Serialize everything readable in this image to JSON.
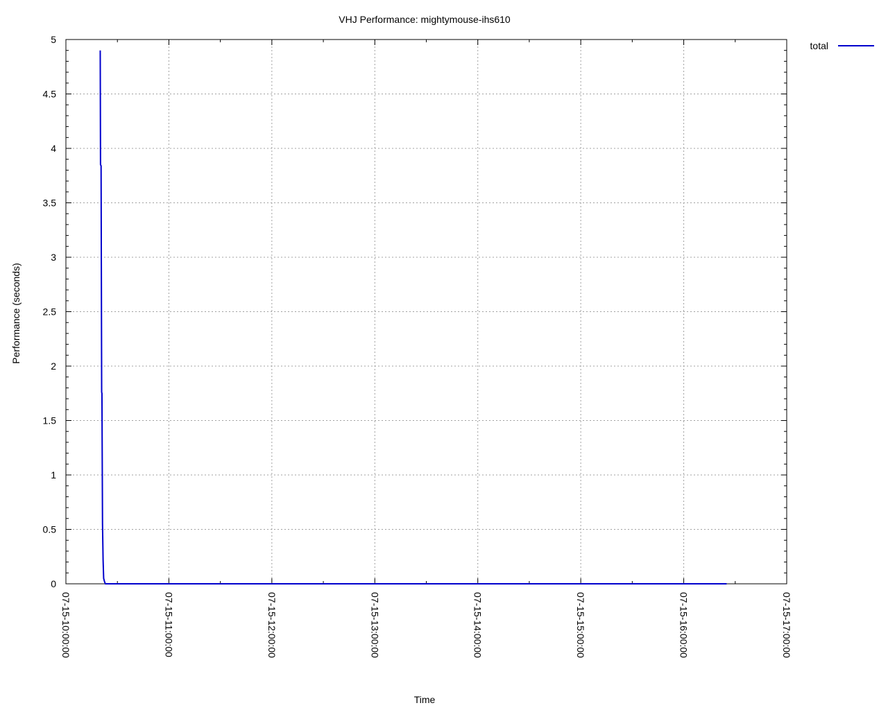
{
  "chart_data": {
    "type": "line",
    "title": "VHJ Performance: mightymouse-ihs610",
    "xlabel": "Time",
    "ylabel": "Performance (seconds)",
    "xlim": [
      "07-15-10:00:00",
      "07-15-17:00:00"
    ],
    "ylim": [
      0,
      5
    ],
    "x_tick_labels": [
      "07-15-10:00:00",
      "07-15-11:00:00",
      "07-15-12:00:00",
      "07-15-13:00:00",
      "07-15-14:00:00",
      "07-15-15:00:00",
      "07-15-16:00:00",
      "07-15-17:00:00"
    ],
    "y_tick_labels": [
      "0",
      "0.5",
      "1",
      "1.5",
      "2",
      "2.5",
      "3",
      "3.5",
      "4",
      "4.5",
      "5"
    ],
    "grid": true,
    "legend_position": "outside-top-right",
    "series": [
      {
        "name": "total",
        "color": "#0000cc",
        "x": [
          "07-15-10:20:00",
          "07-15-10:20:10",
          "07-15-10:20:30",
          "07-15-10:20:50",
          "07-15-10:21:00",
          "07-15-10:21:20",
          "07-15-10:21:40",
          "07-15-10:22:00",
          "07-15-10:22:30",
          "07-15-10:23:00",
          "07-15-10:24:00",
          "07-15-10:26:00",
          "07-15-10:30:00",
          "07-15-11:00:00",
          "07-15-12:00:00",
          "07-15-13:00:00",
          "07-15-14:00:00",
          "07-15-15:00:00",
          "07-15-16:00:00",
          "07-15-16:25:00"
        ],
        "y": [
          4.9,
          3.85,
          3.84,
          1.76,
          1.75,
          0.55,
          0.22,
          0.05,
          0.02,
          0.0,
          0.0,
          0.0,
          0.0,
          0.0,
          0.0,
          0.0,
          0.0,
          0.0,
          0.0,
          0.0
        ]
      }
    ]
  }
}
